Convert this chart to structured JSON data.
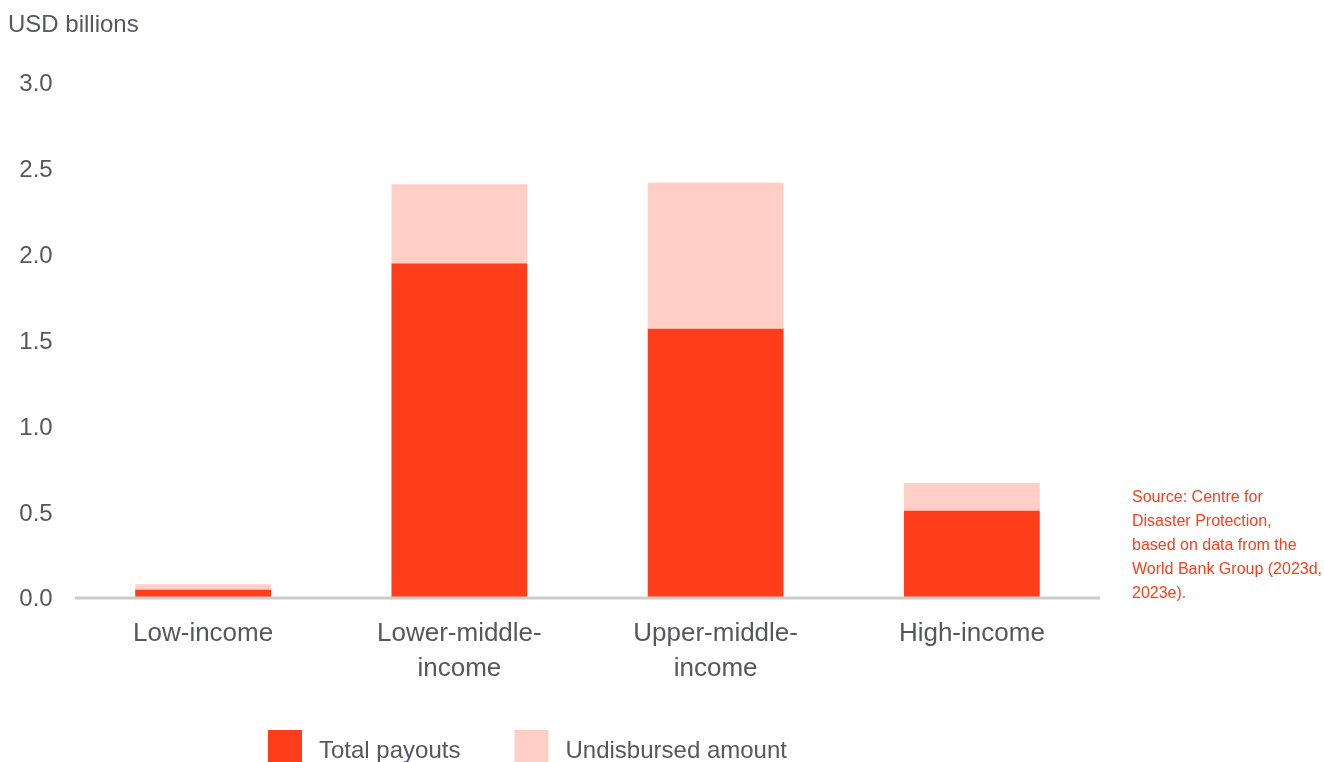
{
  "chart_data": {
    "type": "bar",
    "stacked": true,
    "ylabel": "USD billions",
    "categories": [
      "Low-income",
      "Lower-middle-income",
      "Upper-middle-income",
      "High-income"
    ],
    "series": [
      {
        "name": "Total payouts",
        "color": "#ff3d1a",
        "values": [
          0.05,
          1.95,
          1.57,
          0.51
        ]
      },
      {
        "name": "Undisbursed amount",
        "color": "#ffcec5",
        "values": [
          0.03,
          0.46,
          0.85,
          0.16
        ]
      }
    ],
    "ylim": [
      0,
      3
    ],
    "yticks": [
      {
        "value": 0,
        "label": "0.0"
      },
      {
        "value": 0.5,
        "label": "0.5"
      },
      {
        "value": 1,
        "label": "1.0"
      },
      {
        "value": 1.5,
        "label": "1.5"
      },
      {
        "value": 2,
        "label": "2.0"
      },
      {
        "value": 2.5,
        "label": "2.5"
      },
      {
        "value": 3,
        "label": "3.0"
      }
    ],
    "legend": "bottom",
    "grid": false,
    "annotations": [
      "Source: Centre for Disaster Protection, based on data from the World Bank Group (2023d, 2023e)."
    ]
  }
}
